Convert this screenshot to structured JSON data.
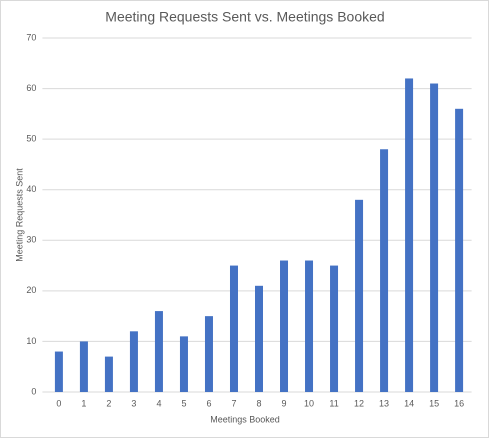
{
  "chart_data": {
    "type": "bar",
    "title": "Meeting Requests Sent vs. Meetings Booked",
    "x_label": "Meetings Booked",
    "y_label": "Meeting Requests Sent",
    "categories": [
      "0",
      "1",
      "2",
      "3",
      "4",
      "5",
      "6",
      "7",
      "8",
      "9",
      "10",
      "11",
      "12",
      "13",
      "14",
      "15",
      "16"
    ],
    "values": [
      8,
      10,
      7,
      12,
      16,
      11,
      15,
      25,
      21,
      26,
      26,
      25,
      38,
      48,
      62,
      61,
      56
    ],
    "color": "#4472c4",
    "ylim": [
      0,
      70
    ],
    "yticks": [
      0,
      10,
      20,
      30,
      40,
      50,
      60,
      70
    ],
    "grid": true
  }
}
